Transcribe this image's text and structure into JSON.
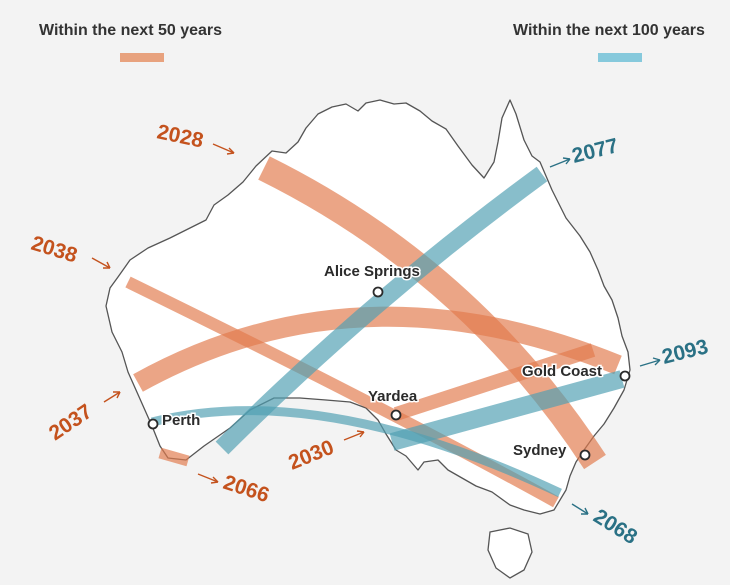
{
  "legend": {
    "fifty": {
      "label": "Within the next 50 years",
      "color": "#e8a27e"
    },
    "hundred": {
      "label": "Within the next 100 years",
      "color": "#86c9dc"
    }
  },
  "colors": {
    "land": "#ffffff",
    "coast": "#555555",
    "path50": "#e27b4c",
    "path100": "#4f9fb3",
    "label50": "#c4521d",
    "label100": "#2a7185",
    "city": "#2b2b2b"
  },
  "cities": [
    {
      "key": "alice-springs",
      "name": "Alice Springs"
    },
    {
      "key": "yardea",
      "name": "Yardea"
    },
    {
      "key": "perth",
      "name": "Perth"
    },
    {
      "key": "gold-coast",
      "name": "Gold Coast"
    },
    {
      "key": "sydney",
      "name": "Sydney"
    }
  ],
  "eclipses": [
    {
      "year": "2028",
      "group": "50"
    },
    {
      "year": "2037",
      "group": "50"
    },
    {
      "year": "2038",
      "group": "50"
    },
    {
      "year": "2030",
      "group": "50"
    },
    {
      "year": "2066",
      "group": "50"
    },
    {
      "year": "2077",
      "group": "100"
    },
    {
      "year": "2093",
      "group": "100"
    },
    {
      "year": "2068",
      "group": "100"
    }
  ]
}
